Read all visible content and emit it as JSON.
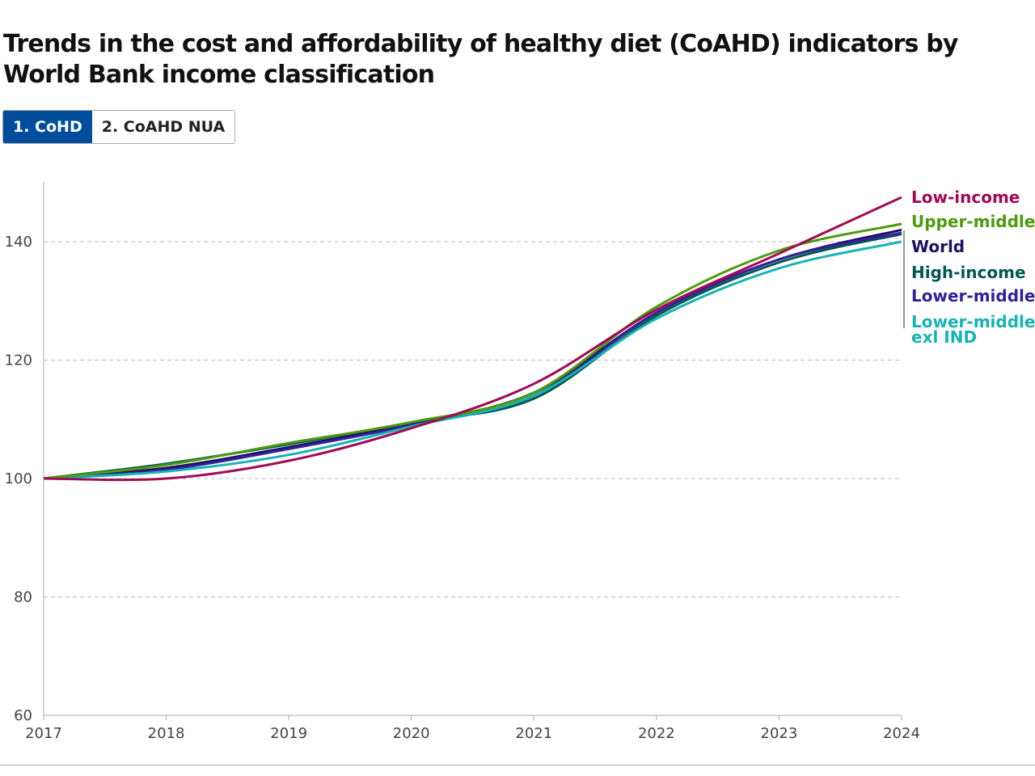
{
  "title": "Trends in the cost and affordability of healthy diet (CoAHD) indicators by World Bank income classification",
  "tabs": [
    {
      "label": "1. CoHD",
      "active": true
    },
    {
      "label": "2. CoAHD NUA",
      "active": false
    }
  ],
  "chart_data": {
    "type": "line",
    "title": "",
    "xlabel": "",
    "ylabel": "",
    "x": [
      2017,
      2018,
      2019,
      2020,
      2021,
      2022,
      2023,
      2024
    ],
    "xlim": [
      2017,
      2024
    ],
    "ylim": [
      60,
      150
    ],
    "yticks": [
      60,
      80,
      100,
      120,
      140
    ],
    "grid": "horizontal dashed",
    "legend": "direct labels at right",
    "series": [
      {
        "name": "Low-income",
        "color": "#a10a55",
        "values": [
          100,
          100,
          103,
          108.5,
          116,
          128.5,
          138,
          147.5
        ]
      },
      {
        "name": "Upper-middle",
        "color": "#4d9a0e",
        "values": [
          100,
          102.3,
          106,
          109.5,
          114.5,
          129,
          138.5,
          143
        ]
      },
      {
        "name": "World",
        "color": "#1c125e",
        "values": [
          100,
          101.8,
          105.3,
          109.3,
          114.5,
          128,
          137,
          142
        ]
      },
      {
        "name": "High-income",
        "color": "#00584f",
        "values": [
          100,
          102.5,
          105.8,
          109.5,
          113.5,
          127.5,
          136.5,
          141.3
        ]
      },
      {
        "name": "Lower-middle",
        "color": "#33229a",
        "values": [
          100,
          101.5,
          105,
          109,
          114,
          128,
          137,
          141.5
        ]
      },
      {
        "name": "Lower-middle exl IND",
        "label_lines": [
          "Lower-middle",
          "exl IND"
        ],
        "color": "#17b3b3",
        "values": [
          100,
          101.2,
          104,
          108.8,
          114,
          127,
          135.5,
          140
        ]
      }
    ]
  }
}
